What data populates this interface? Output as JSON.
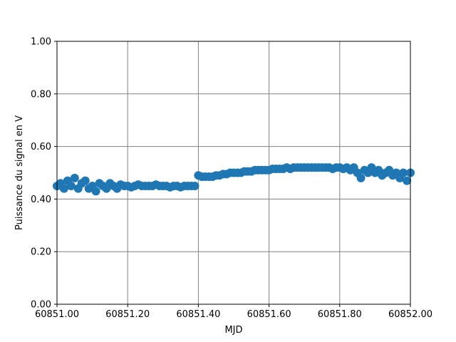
{
  "chart_data": {
    "type": "scatter",
    "title": "",
    "xlabel": "MJD",
    "ylabel": "Puissance du signal en V",
    "xlim": [
      60851.0,
      60852.0
    ],
    "ylim": [
      0.0,
      1.0
    ],
    "x_ticks": [
      60851.0,
      60851.2,
      60851.4,
      60851.6,
      60851.8,
      60852.0
    ],
    "x_tick_labels": [
      "60851.00",
      "60851.20",
      "60851.40",
      "60851.60",
      "60851.80",
      "60852.00"
    ],
    "y_ticks": [
      0.0,
      0.2,
      0.4,
      0.6,
      0.8,
      1.0
    ],
    "y_tick_labels": [
      "0.00",
      "0.20",
      "0.40",
      "0.60",
      "0.80",
      "1.00"
    ],
    "grid": true,
    "marker_color": "#1f77b4",
    "grid_color": "#808080",
    "series": [
      {
        "x": [
          60851.0,
          60851.01,
          60851.02,
          60851.03,
          60851.04,
          60851.05,
          60851.06,
          60851.07,
          60851.08,
          60851.09,
          60851.1,
          60851.11,
          60851.12,
          60851.13,
          60851.14,
          60851.15,
          60851.16,
          60851.17,
          60851.18,
          60851.19,
          60851.2,
          60851.21,
          60851.22,
          60851.23,
          60851.24,
          60851.25,
          60851.26,
          60851.27,
          60851.28,
          60851.29,
          60851.3,
          60851.31,
          60851.32,
          60851.33,
          60851.34,
          60851.35,
          60851.36,
          60851.37,
          60851.38,
          60851.39,
          60851.4,
          60851.41,
          60851.42,
          60851.43,
          60851.44,
          60851.45,
          60851.46,
          60851.47,
          60851.48,
          60851.49,
          60851.5,
          60851.51,
          60851.52,
          60851.53,
          60851.54,
          60851.55,
          60851.56,
          60851.57,
          60851.58,
          60851.59,
          60851.6,
          60851.61,
          60851.62,
          60851.63,
          60851.64,
          60851.65,
          60851.66,
          60851.67,
          60851.68,
          60851.69,
          60851.7,
          60851.71,
          60851.72,
          60851.73,
          60851.74,
          60851.75,
          60851.76,
          60851.77,
          60851.78,
          60851.79,
          60851.8,
          60851.81,
          60851.82,
          60851.83,
          60851.84,
          60851.85,
          60851.86,
          60851.87,
          60851.88,
          60851.89,
          60851.9,
          60851.91,
          60851.92,
          60851.93,
          60851.94,
          60851.95,
          60851.96,
          60851.97,
          60851.98,
          60851.99,
          60852.0
        ],
        "y": [
          0.45,
          0.46,
          0.44,
          0.47,
          0.45,
          0.48,
          0.44,
          0.46,
          0.47,
          0.44,
          0.45,
          0.43,
          0.46,
          0.45,
          0.44,
          0.46,
          0.45,
          0.44,
          0.455,
          0.45,
          0.45,
          0.445,
          0.45,
          0.455,
          0.45,
          0.45,
          0.45,
          0.45,
          0.455,
          0.45,
          0.45,
          0.45,
          0.445,
          0.45,
          0.45,
          0.445,
          0.45,
          0.45,
          0.45,
          0.45,
          0.49,
          0.485,
          0.485,
          0.485,
          0.485,
          0.49,
          0.49,
          0.495,
          0.495,
          0.5,
          0.5,
          0.5,
          0.5,
          0.505,
          0.505,
          0.505,
          0.51,
          0.51,
          0.51,
          0.51,
          0.51,
          0.515,
          0.515,
          0.515,
          0.515,
          0.52,
          0.515,
          0.52,
          0.52,
          0.52,
          0.52,
          0.52,
          0.52,
          0.52,
          0.52,
          0.52,
          0.52,
          0.52,
          0.515,
          0.52,
          0.52,
          0.515,
          0.52,
          0.51,
          0.52,
          0.5,
          0.48,
          0.51,
          0.5,
          0.52,
          0.5,
          0.51,
          0.49,
          0.5,
          0.51,
          0.49,
          0.5,
          0.48,
          0.5,
          0.47,
          0.5
        ]
      }
    ]
  }
}
